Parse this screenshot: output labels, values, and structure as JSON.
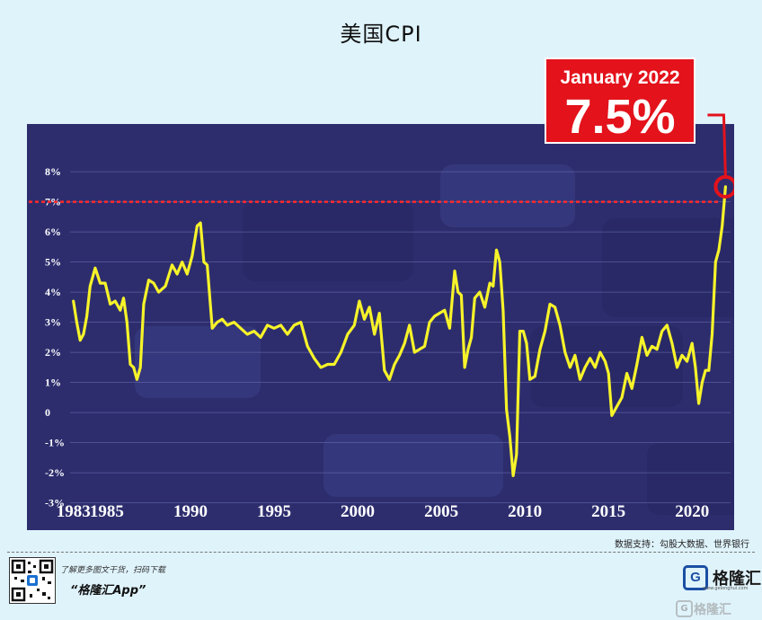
{
  "page": {
    "title": "美国CPI",
    "source": "数据支持：勾股大数据、世界银行"
  },
  "footer": {
    "promo_small": "了解更多图文干货，扫码下载",
    "promo_big": "“格隆汇App”",
    "logo_name": "格隆汇",
    "logo_letter": "G",
    "logo_url": "www.gelonghui.com",
    "watermark": "格隆汇"
  },
  "colors": {
    "background": "#dff3fb",
    "plot_bg": "#2d2d6e",
    "line": "#f6f32a",
    "callout": "#e3121b",
    "dotted_line": "#ff2a2a",
    "text": "#ffffff"
  },
  "chart_data": {
    "type": "line",
    "title": "美国CPI",
    "xlabel": "",
    "ylabel": "",
    "xlim": [
      1982.8,
      2022.3
    ],
    "ylim": [
      -3.4,
      8.6
    ],
    "y_ticks": [
      8,
      7,
      6,
      5,
      4,
      3,
      2,
      1,
      0,
      -1,
      -2,
      -3
    ],
    "y_tick_labels": [
      "8%",
      "7%",
      "6%",
      "5%",
      "4%",
      "3%",
      "2%",
      "1%",
      "0",
      "-1%",
      "-2%",
      "-3%"
    ],
    "x_ticks": [
      1983,
      1985,
      1990,
      1995,
      2000,
      2005,
      2010,
      2015,
      2020
    ],
    "x_tick_labels": [
      "1983",
      "1985",
      "1990",
      "1995",
      "2000",
      "2005",
      "2010",
      "2015",
      "2020"
    ],
    "grid": true,
    "reference_line": 7.0,
    "annotation": {
      "label": "January 2022",
      "value_label": "7.5%",
      "x": 2022.0,
      "y": 7.5
    },
    "series": [
      {
        "x": [
          1983.0,
          1983.2,
          1983.4,
          1983.6,
          1983.8,
          1984.0,
          1984.3,
          1984.6,
          1984.9,
          1985.2,
          1985.5,
          1985.8,
          1986.0,
          1986.2,
          1986.4,
          1986.6,
          1986.8,
          1987.0,
          1987.2,
          1987.5,
          1987.8,
          1988.1,
          1988.5,
          1988.9,
          1989.2,
          1989.5,
          1989.8,
          1990.1,
          1990.4,
          1990.6,
          1990.8,
          1991.0,
          1991.3,
          1991.6,
          1991.9,
          1992.2,
          1992.6,
          1993.0,
          1993.4,
          1993.8,
          1994.2,
          1994.6,
          1995.0,
          1995.4,
          1995.8,
          1996.2,
          1996.6,
          1997.0,
          1997.4,
          1997.8,
          1998.2,
          1998.6,
          1999.0,
          1999.4,
          1999.8,
          2000.1,
          2000.4,
          2000.7,
          2001.0,
          2001.3,
          2001.6,
          2001.9,
          2002.2,
          2002.5,
          2002.8,
          2003.1,
          2003.4,
          2003.7,
          2004.0,
          2004.3,
          2004.6,
          2004.9,
          2005.2,
          2005.5,
          2005.8,
          2006.0,
          2006.2,
          2006.4,
          2006.6,
          2006.8,
          2007.0,
          2007.3,
          2007.6,
          2007.9,
          2008.1,
          2008.3,
          2008.5,
          2008.7,
          2008.9,
          2009.1,
          2009.3,
          2009.5,
          2009.7,
          2009.9,
          2010.1,
          2010.3,
          2010.6,
          2010.9,
          2011.2,
          2011.5,
          2011.8,
          2012.1,
          2012.4,
          2012.7,
          2013.0,
          2013.3,
          2013.6,
          2013.9,
          2014.2,
          2014.5,
          2014.8,
          2015.0,
          2015.2,
          2015.5,
          2015.8,
          2016.1,
          2016.4,
          2016.7,
          2017.0,
          2017.3,
          2017.6,
          2017.9,
          2018.2,
          2018.5,
          2018.8,
          2019.1,
          2019.4,
          2019.7,
          2020.0,
          2020.2,
          2020.4,
          2020.6,
          2020.8,
          2021.0,
          2021.2,
          2021.4,
          2021.6,
          2021.8,
          2022.0
        ],
        "values": [
          3.7,
          3.0,
          2.4,
          2.6,
          3.2,
          4.2,
          4.8,
          4.3,
          4.3,
          3.6,
          3.7,
          3.4,
          3.8,
          3.0,
          1.6,
          1.5,
          1.1,
          1.5,
          3.6,
          4.4,
          4.3,
          4.0,
          4.2,
          4.9,
          4.6,
          5.0,
          4.6,
          5.2,
          6.2,
          6.3,
          5.0,
          4.9,
          2.8,
          3.0,
          3.1,
          2.9,
          3.0,
          2.8,
          2.6,
          2.7,
          2.5,
          2.9,
          2.8,
          2.9,
          2.6,
          2.9,
          3.0,
          2.2,
          1.8,
          1.5,
          1.6,
          1.6,
          2.0,
          2.6,
          2.9,
          3.7,
          3.1,
          3.5,
          2.6,
          3.3,
          1.4,
          1.1,
          1.6,
          1.9,
          2.3,
          2.9,
          2.0,
          2.1,
          2.2,
          3.0,
          3.2,
          3.3,
          3.4,
          2.8,
          4.7,
          4.0,
          3.9,
          1.5,
          2.1,
          2.5,
          3.8,
          4.0,
          3.5,
          4.3,
          4.2,
          5.4,
          5.0,
          3.4,
          0.1,
          -0.8,
          -2.1,
          -1.4,
          2.7,
          2.7,
          2.3,
          1.1,
          1.2,
          2.1,
          2.7,
          3.6,
          3.5,
          2.9,
          2.0,
          1.5,
          1.9,
          1.1,
          1.5,
          1.8,
          1.5,
          2.0,
          1.7,
          1.3,
          -0.1,
          0.2,
          0.5,
          1.3,
          0.8,
          1.6,
          2.5,
          1.9,
          2.2,
          2.1,
          2.7,
          2.9,
          2.3,
          1.5,
          1.9,
          1.7,
          2.3,
          1.5,
          0.3,
          1.0,
          1.4,
          1.4,
          2.6,
          5.0,
          5.4,
          6.2,
          7.5
        ]
      }
    ]
  }
}
